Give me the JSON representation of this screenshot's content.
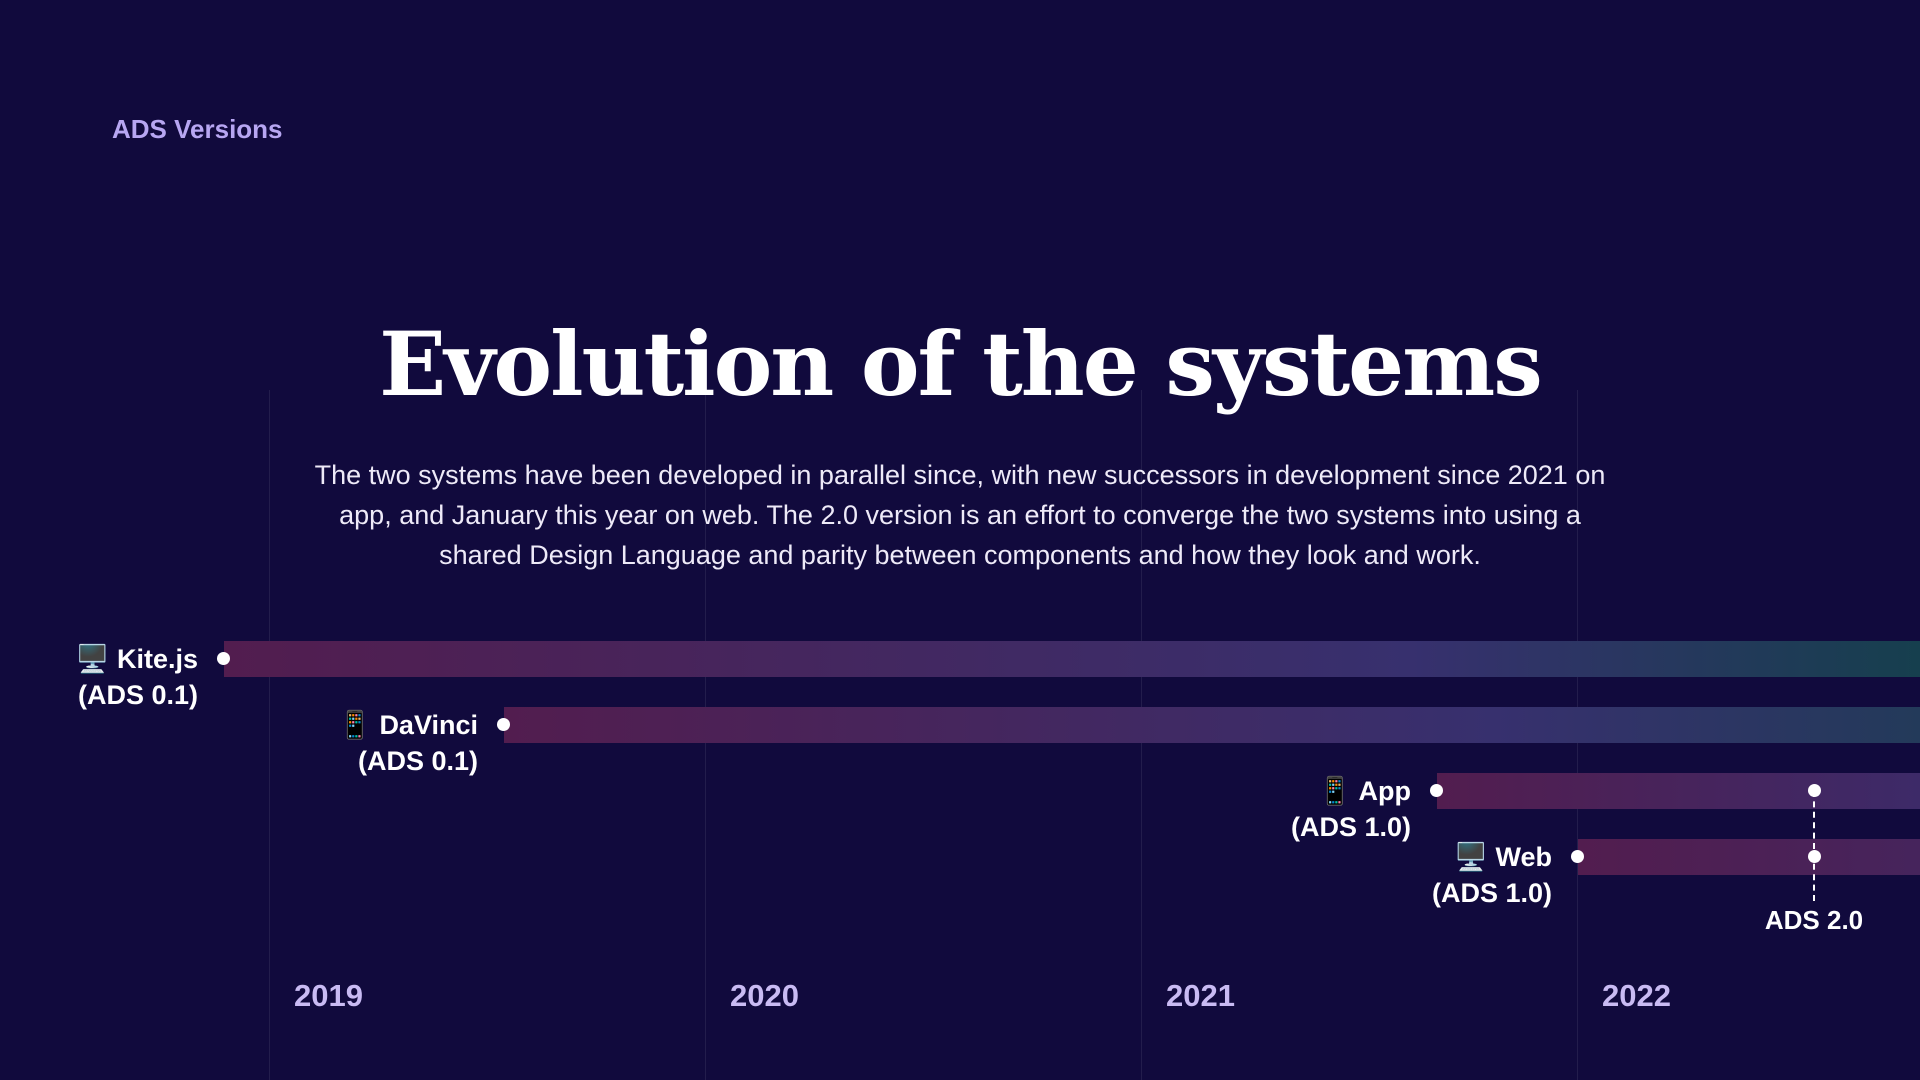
{
  "kicker": "ADS Versions",
  "title": "Evolution of the systems",
  "description": "The two systems have been developed in parallel since, with new successors in development since 2021 on app, and January this year on web. The 2.0 version is an effort to converge the two systems into using a shared Design Language and parity between components and how they look and work.",
  "tracks": [
    {
      "icon": "🖥️",
      "name": "Kite.js",
      "version": "(ADS 0.1)",
      "platform": "desktop-icon"
    },
    {
      "icon": "📱",
      "name": "DaVinci",
      "version": "(ADS 0.1)",
      "platform": "mobile-icon"
    },
    {
      "icon": "📱",
      "name": "App",
      "version": "(ADS 1.0)",
      "platform": "mobile-icon"
    },
    {
      "icon": "🖥️",
      "name": "Web",
      "version": "(ADS 1.0)",
      "platform": "desktop-icon"
    }
  ],
  "marker": {
    "label": "ADS 2.0"
  },
  "years": [
    "2019",
    "2020",
    "2021",
    "2022"
  ],
  "colors": {
    "background": "#110a3d",
    "bar_start": "#521d4f",
    "bar_mid": "#37306e",
    "bar_end": "#163f4e",
    "accent": "#b7a6f2"
  }
}
